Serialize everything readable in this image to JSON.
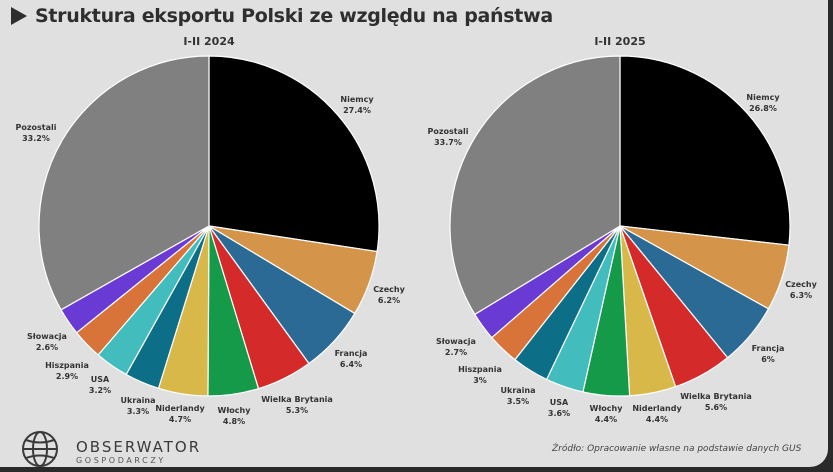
{
  "header": {
    "title": "Struktura eksportu Polski ze względu na państwa"
  },
  "footer": {
    "logo_name": "OBSERWATOR",
    "logo_sub": "GOSPODARCZY",
    "source": "Źródło: Opracowanie własne na podstawie danych GUS"
  },
  "chart_data": [
    {
      "type": "pie",
      "title": "I-II 2024",
      "slices": [
        {
          "label": "Niemcy",
          "value": 27.4,
          "value_text": "27.4%",
          "color": "#000000"
        },
        {
          "label": "Czechy",
          "value": 6.2,
          "value_text": "6.2%",
          "color": "#d4944a"
        },
        {
          "label": "Francja",
          "value": 6.4,
          "value_text": "6.4%",
          "color": "#2a6a94"
        },
        {
          "label": "Wielka Brytania",
          "value": 5.3,
          "value_text": "5.3%",
          "color": "#d42a2a"
        },
        {
          "label": "Włochy",
          "value": 4.8,
          "value_text": "4.8%",
          "color": "#159a4a"
        },
        {
          "label": "Niderlandy",
          "value": 4.7,
          "value_text": "4.7%",
          "color": "#d9b84a"
        },
        {
          "label": "Ukraina",
          "value": 3.3,
          "value_text": "3.3%",
          "color": "#0d6e88"
        },
        {
          "label": "USA",
          "value": 3.2,
          "value_text": "3.2%",
          "color": "#42bcbc"
        },
        {
          "label": "Hiszpania",
          "value": 2.9,
          "value_text": "2.9%",
          "color": "#d8743a"
        },
        {
          "label": "Słowacja",
          "value": 2.6,
          "value_text": "2.6%",
          "color": "#6a3ad4"
        },
        {
          "label": "Pozostali",
          "value": 33.2,
          "value_text": "33.2%",
          "color": "#808080"
        }
      ]
    },
    {
      "type": "pie",
      "title": "I-II 2025",
      "slices": [
        {
          "label": "Niemcy",
          "value": 26.8,
          "value_text": "26.8%",
          "color": "#000000"
        },
        {
          "label": "Czechy",
          "value": 6.3,
          "value_text": "6.3%",
          "color": "#d4944a"
        },
        {
          "label": "Francja",
          "value": 6,
          "value_text": "6%",
          "color": "#2a6a94"
        },
        {
          "label": "Wielka Brytania",
          "value": 5.6,
          "value_text": "5.6%",
          "color": "#d42a2a"
        },
        {
          "label": "Niderlandy",
          "value": 4.4,
          "value_text": "4.4%",
          "color": "#d9b84a"
        },
        {
          "label": "Włochy",
          "value": 4.4,
          "value_text": "4.4%",
          "color": "#159a4a"
        },
        {
          "label": "USA",
          "value": 3.6,
          "value_text": "3.6%",
          "color": "#42bcbc"
        },
        {
          "label": "Ukraina",
          "value": 3.5,
          "value_text": "3.5%",
          "color": "#0d6e88"
        },
        {
          "label": "Hiszpania",
          "value": 3,
          "value_text": "3%",
          "color": "#d8743a"
        },
        {
          "label": "Słowacja",
          "value": 2.7,
          "value_text": "2.7%",
          "color": "#6a3ad4"
        },
        {
          "label": "Pozostali",
          "value": 33.7,
          "value_text": "33.7%",
          "color": "#808080"
        }
      ]
    }
  ]
}
